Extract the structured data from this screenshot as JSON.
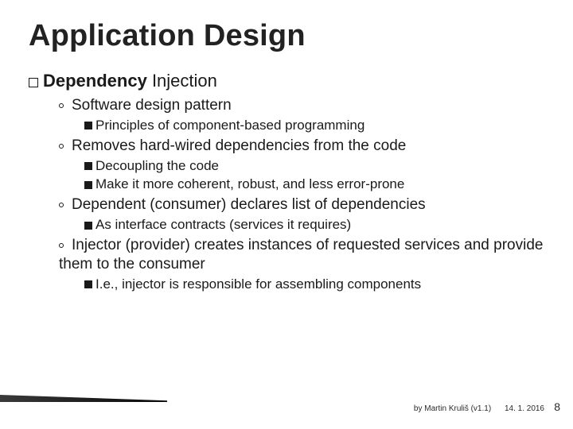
{
  "title": "Application Design",
  "heading": {
    "bold": "Dependency",
    "rest": " Injection"
  },
  "bullets": [
    {
      "text": "Software design pattern",
      "children": [
        {
          "text": "Principles of component-based programming"
        }
      ]
    },
    {
      "text": "Removes hard-wired dependencies from the code",
      "children": [
        {
          "text": "Decoupling the code"
        },
        {
          "text": "Make it more coherent, robust, and less error-prone"
        }
      ]
    },
    {
      "text": "Dependent (consumer) declares list of dependencies",
      "children": [
        {
          "text": "As interface contracts (services it requires)"
        }
      ]
    },
    {
      "text": "Injector (provider) creates instances of requested services and provide them to the consumer",
      "children": [
        {
          "text": "I.e., injector is responsible for assembling components"
        }
      ]
    }
  ],
  "footer": {
    "by": "by Martin Kruliš (v1.1)",
    "date": "14. 1. 2016"
  },
  "slide_number": "8",
  "colors": {
    "title": "#222222",
    "text": "#1a1a1a",
    "accent_bar": "#1a1a1a",
    "background": "#ffffff"
  },
  "typography": {
    "title_size_pt": 28,
    "body_size_pt": 14,
    "footer_size_pt": 8
  }
}
